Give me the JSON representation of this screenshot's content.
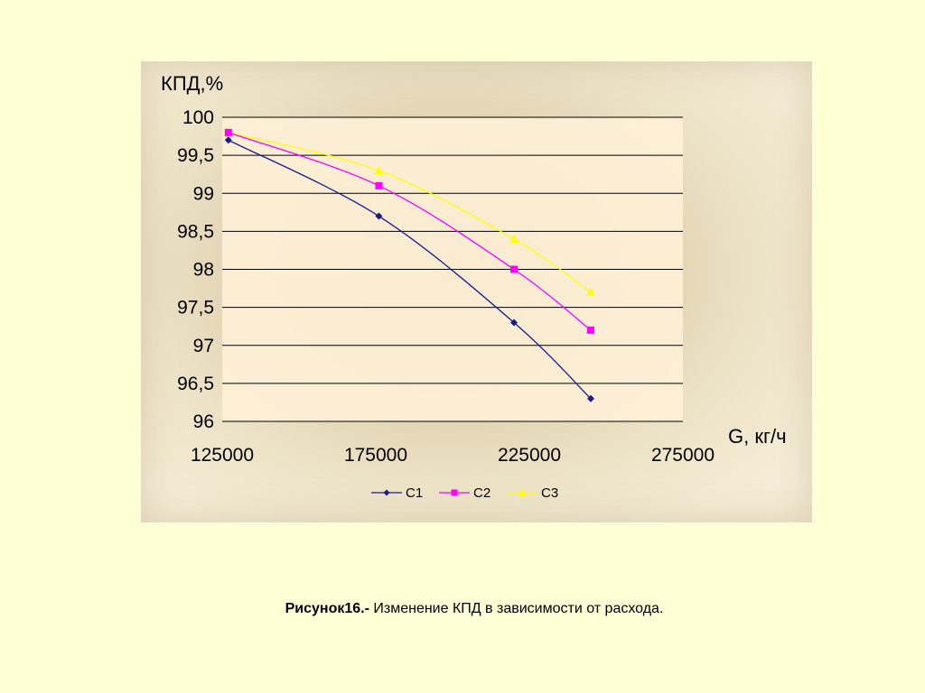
{
  "chart_data": {
    "type": "line",
    "ylabel": "КПД,%",
    "xlabel": "G, кг/ч",
    "xlim": [
      125000,
      275000
    ],
    "ylim": [
      96,
      100
    ],
    "x_ticks": [
      "125000",
      "175000",
      "225000",
      "275000"
    ],
    "y_ticks": [
      "100",
      "99,5",
      "99",
      "98,5",
      "98",
      "97,5",
      "97",
      "96,5",
      "96"
    ],
    "grid": true,
    "legend_position": "bottom",
    "series": [
      {
        "name": "С1",
        "color": "#1a1a8c",
        "marker": "diamond",
        "x": [
          127000,
          176000,
          220000,
          245000
        ],
        "y": [
          99.7,
          98.7,
          97.3,
          96.3
        ]
      },
      {
        "name": "С2",
        "color": "#ff00ff",
        "marker": "square",
        "x": [
          127000,
          176000,
          220000,
          245000
        ],
        "y": [
          99.8,
          99.1,
          98.0,
          97.2
        ]
      },
      {
        "name": "С3",
        "color": "#ffff00",
        "marker": "triangle",
        "x": [
          127000,
          176000,
          220000,
          245000
        ],
        "y": [
          99.8,
          99.3,
          98.4,
          97.7
        ]
      }
    ]
  },
  "caption": {
    "label": "Рисунок16.-",
    "text": " Изменение КПД в зависимости от расхода."
  }
}
